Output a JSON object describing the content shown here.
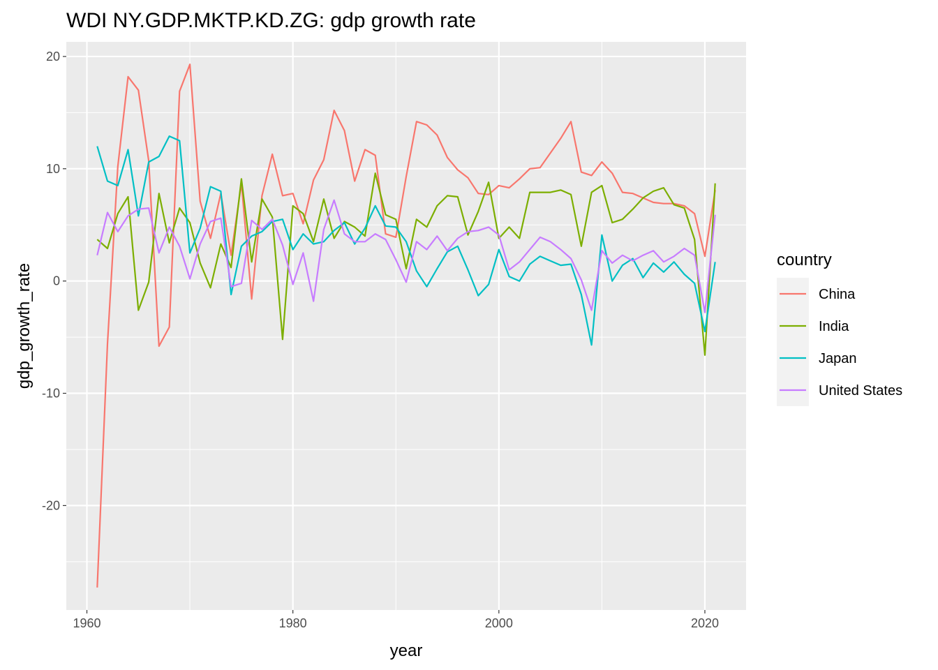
{
  "chart_data": {
    "type": "line",
    "title": "WDI NY.GDP.MKTP.KD.ZG: gdp growth rate",
    "xlabel": "year",
    "ylabel": "gdp_growth_rate",
    "xlim": [
      1958.0,
      2024.0
    ],
    "ylim": [
      -29.3,
      21.3
    ],
    "x_ticks": [
      1960,
      1980,
      2000,
      2020
    ],
    "y_ticks": [
      -20,
      -10,
      0,
      10,
      20
    ],
    "x_tick_labels": [
      "1960",
      "1980",
      "2000",
      "2020"
    ],
    "y_tick_labels": [
      "-20",
      "-10",
      "0",
      "10",
      "20"
    ],
    "grid": true,
    "legend_title": "country",
    "legend_position": "right",
    "x": [
      1961,
      1962,
      1963,
      1964,
      1965,
      1966,
      1967,
      1968,
      1969,
      1970,
      1971,
      1972,
      1973,
      1974,
      1975,
      1976,
      1977,
      1978,
      1979,
      1980,
      1981,
      1982,
      1983,
      1984,
      1985,
      1986,
      1987,
      1988,
      1989,
      1990,
      1991,
      1992,
      1993,
      1994,
      1995,
      1996,
      1997,
      1998,
      1999,
      2000,
      2001,
      2002,
      2003,
      2004,
      2005,
      2006,
      2007,
      2008,
      2009,
      2010,
      2011,
      2012,
      2013,
      2014,
      2015,
      2016,
      2017,
      2018,
      2019,
      2020,
      2021
    ],
    "series": [
      {
        "name": "China",
        "color": "#F8766D",
        "values": [
          -27.3,
          -5.6,
          10.2,
          18.2,
          17.0,
          10.7,
          -5.8,
          -4.1,
          16.9,
          19.3,
          7.1,
          3.8,
          7.8,
          2.3,
          8.7,
          -1.6,
          7.6,
          11.3,
          7.6,
          7.8,
          5.1,
          9.0,
          10.8,
          15.2,
          13.4,
          8.9,
          11.7,
          11.2,
          4.2,
          3.9,
          9.3,
          14.2,
          13.9,
          13.0,
          11.0,
          9.9,
          9.2,
          7.8,
          7.7,
          8.5,
          8.3,
          9.1,
          10.0,
          10.1,
          11.4,
          12.7,
          14.2,
          9.7,
          9.4,
          10.6,
          9.6,
          7.9,
          7.8,
          7.4,
          7.0,
          6.9,
          6.9,
          6.7,
          6.0,
          2.2,
          8.1
        ]
      },
      {
        "name": "India",
        "color": "#7CAE00",
        "values": [
          3.7,
          2.9,
          6.0,
          7.5,
          -2.6,
          -0.1,
          7.8,
          3.4,
          6.5,
          5.2,
          1.6,
          -0.6,
          3.3,
          1.2,
          9.1,
          1.7,
          7.3,
          5.7,
          -5.2,
          6.7,
          6.0,
          3.5,
          7.3,
          3.8,
          5.3,
          4.8,
          4.0,
          9.6,
          5.9,
          5.5,
          1.1,
          5.5,
          4.8,
          6.7,
          7.6,
          7.5,
          4.1,
          6.2,
          8.8,
          3.8,
          4.8,
          3.8,
          7.9,
          7.9,
          7.9,
          8.1,
          7.7,
          3.1,
          7.9,
          8.5,
          5.2,
          5.5,
          6.4,
          7.4,
          8.0,
          8.3,
          6.8,
          6.5,
          3.7,
          -6.6,
          8.7
        ]
      },
      {
        "name": "Japan",
        "color": "#00BFC4",
        "values": [
          12.0,
          8.9,
          8.5,
          11.7,
          5.8,
          10.6,
          11.1,
          12.9,
          12.5,
          2.5,
          4.7,
          8.4,
          8.0,
          -1.2,
          3.1,
          4.0,
          4.4,
          5.3,
          5.5,
          2.8,
          4.2,
          3.3,
          3.5,
          4.5,
          5.2,
          3.3,
          4.7,
          6.7,
          4.9,
          4.8,
          3.5,
          0.9,
          -0.5,
          1.1,
          2.6,
          3.1,
          1.0,
          -1.3,
          -0.3,
          2.8,
          0.4,
          0.0,
          1.5,
          2.2,
          1.8,
          1.4,
          1.5,
          -1.2,
          -5.7,
          4.1,
          0.0,
          1.4,
          2.0,
          0.3,
          1.6,
          0.8,
          1.7,
          0.6,
          -0.2,
          -4.5,
          1.7
        ]
      },
      {
        "name": "United States",
        "color": "#C77CFF",
        "values": [
          2.3,
          6.1,
          4.4,
          5.8,
          6.4,
          6.5,
          2.5,
          4.8,
          3.1,
          0.2,
          3.3,
          5.3,
          5.6,
          -0.5,
          -0.2,
          5.4,
          4.6,
          5.5,
          3.2,
          -0.3,
          2.5,
          -1.8,
          4.6,
          7.2,
          4.2,
          3.5,
          3.5,
          4.2,
          3.7,
          1.9,
          -0.1,
          3.5,
          2.8,
          4.0,
          2.7,
          3.8,
          4.4,
          4.5,
          4.8,
          4.1,
          1.0,
          1.7,
          2.8,
          3.9,
          3.5,
          2.8,
          2.0,
          0.1,
          -2.6,
          2.7,
          1.6,
          2.3,
          1.8,
          2.3,
          2.7,
          1.7,
          2.2,
          2.9,
          2.3,
          -2.8,
          5.9
        ]
      }
    ]
  }
}
